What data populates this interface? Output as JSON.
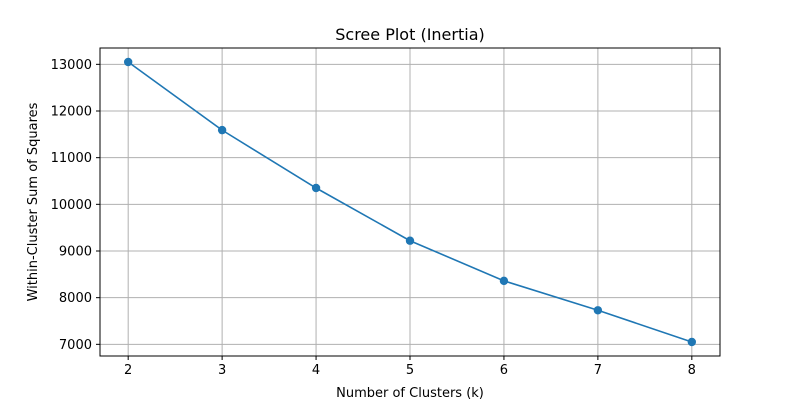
{
  "chart_data": {
    "type": "line",
    "title": "Scree Plot (Inertia)",
    "xlabel": "Number of Clusters (k)",
    "ylabel": "Within-Cluster Sum of Squares",
    "x": [
      2,
      3,
      4,
      5,
      6,
      7,
      8
    ],
    "series": [
      {
        "values": [
          13050,
          11590,
          10350,
          9220,
          8360,
          7730,
          7050
        ],
        "color": "#1f77b4",
        "marker": "circle"
      }
    ],
    "xlim": [
      1.7,
      8.3
    ],
    "ylim": [
      6750,
      13350
    ],
    "xticks": [
      2,
      3,
      4,
      5,
      6,
      7,
      8
    ],
    "yticks": [
      7000,
      8000,
      9000,
      10000,
      11000,
      12000,
      13000
    ],
    "grid": true,
    "grid_color": "#b0b0b0"
  }
}
